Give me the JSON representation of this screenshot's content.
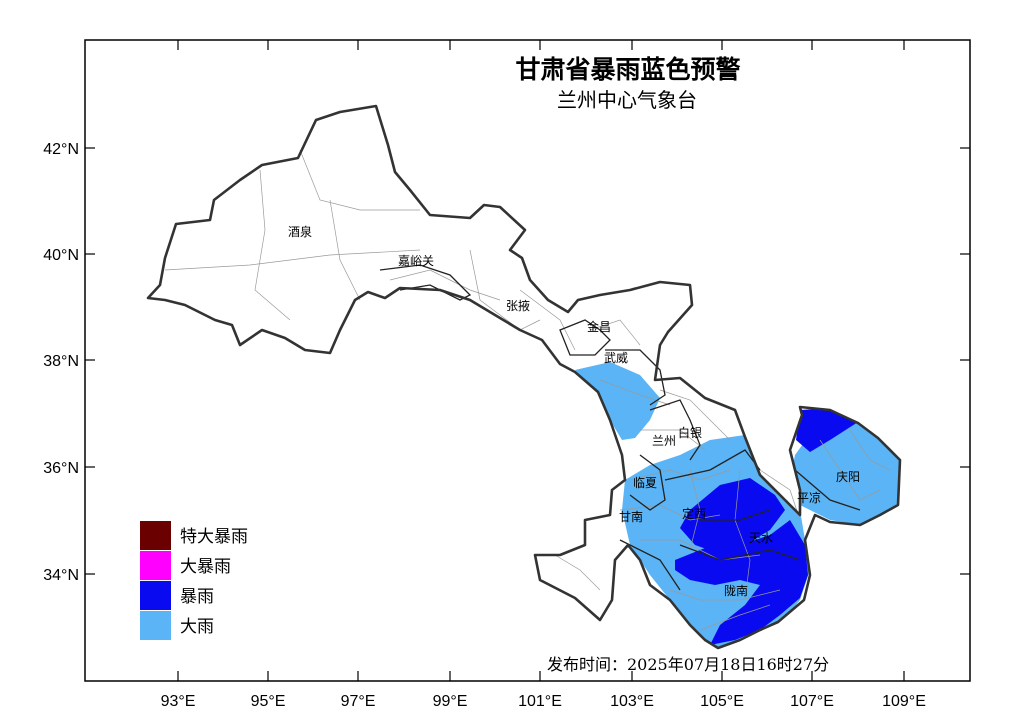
{
  "title": "甘肃省暴雨蓝色预警",
  "subtitle": "兰州中心气象台",
  "issue_time": "发布时间：2025年07月18日16时27分",
  "axes": {
    "x_ticks": [
      "93°E",
      "95°E",
      "97°E",
      "99°E",
      "101°E",
      "103°E",
      "105°E",
      "107°E",
      "109°E"
    ],
    "y_ticks": [
      "42°N",
      "40°N",
      "38°N",
      "36°N",
      "34°N"
    ]
  },
  "cities": [
    {
      "name": "酒泉"
    },
    {
      "name": "嘉峪关"
    },
    {
      "name": "张掖"
    },
    {
      "name": "金昌"
    },
    {
      "name": "武威"
    },
    {
      "name": "白银"
    },
    {
      "name": "兰州"
    },
    {
      "name": "临夏"
    },
    {
      "name": "甘南"
    },
    {
      "name": "定西"
    },
    {
      "name": "天水"
    },
    {
      "name": "平凉"
    },
    {
      "name": "庆阳"
    },
    {
      "name": "陇南"
    }
  ],
  "legend": [
    {
      "label": "特大暴雨",
      "color": "#6b0000"
    },
    {
      "label": "大暴雨",
      "color": "#ff00ff"
    },
    {
      "label": "暴雨",
      "color": "#0a0af0"
    },
    {
      "label": "大雨",
      "color": "#5ab4f5"
    }
  ],
  "colors": {
    "heavy_rain": "#5ab4f5",
    "rainstorm": "#0a0af0"
  }
}
